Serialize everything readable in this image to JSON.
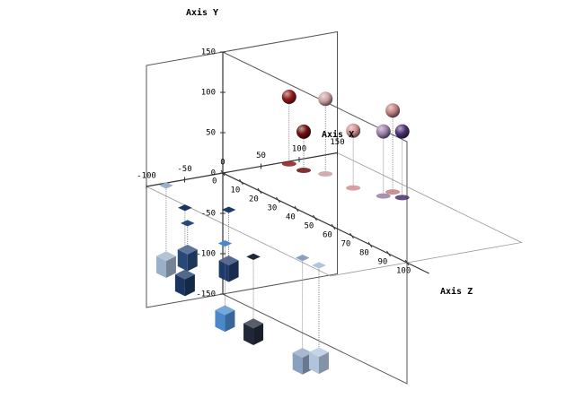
{
  "chart_data": {
    "type": "scatter3d",
    "xlabel": "Axis X",
    "ylabel": "Axis Y",
    "zlabel": "Axis Z",
    "xlim": [
      -100,
      150
    ],
    "xticks": [
      -100,
      -50,
      0,
      50,
      100,
      150
    ],
    "ylim": [
      -150,
      150
    ],
    "yticks": [
      -150,
      -100,
      -50,
      0,
      50,
      100,
      150
    ],
    "zlim": [
      0,
      100
    ],
    "zticks": [
      0,
      10,
      20,
      30,
      40,
      50,
      60,
      70,
      80,
      90,
      100
    ],
    "series": [
      {
        "shape": "sphere",
        "x": [
          82,
          83,
          97,
          96,
          109,
          126,
          124
        ],
        "y": [
          83,
          48,
          93,
          71,
          80,
          101,
          82
        ],
        "z": [
          2,
          9.5,
          15.5,
          31,
          42,
          40,
          46
        ],
        "colors": [
          "#8b1a1a",
          "#6b0f0f",
          "#c9a0a0",
          "#d09090",
          "#9a80a8",
          "#c08080",
          "#4a3070"
        ]
      },
      {
        "shape": "cube",
        "x": [
          -79,
          -105,
          -133,
          -67,
          -137,
          -136,
          -91,
          -90
        ],
        "y": [
          -95,
          -90,
          -40,
          -70,
          -90,
          -90,
          -125,
          -115
        ],
        "z": [
          2,
          23,
          36,
          31,
          58,
          73,
          81,
          89.5
        ],
        "colors": [
          "#9ab0c8",
          "#1a3560",
          "#284878",
          "#1e3a6a",
          "#4a88cc",
          "#202838",
          "#8aa0c0",
          "#b0c4dc"
        ]
      }
    ]
  }
}
